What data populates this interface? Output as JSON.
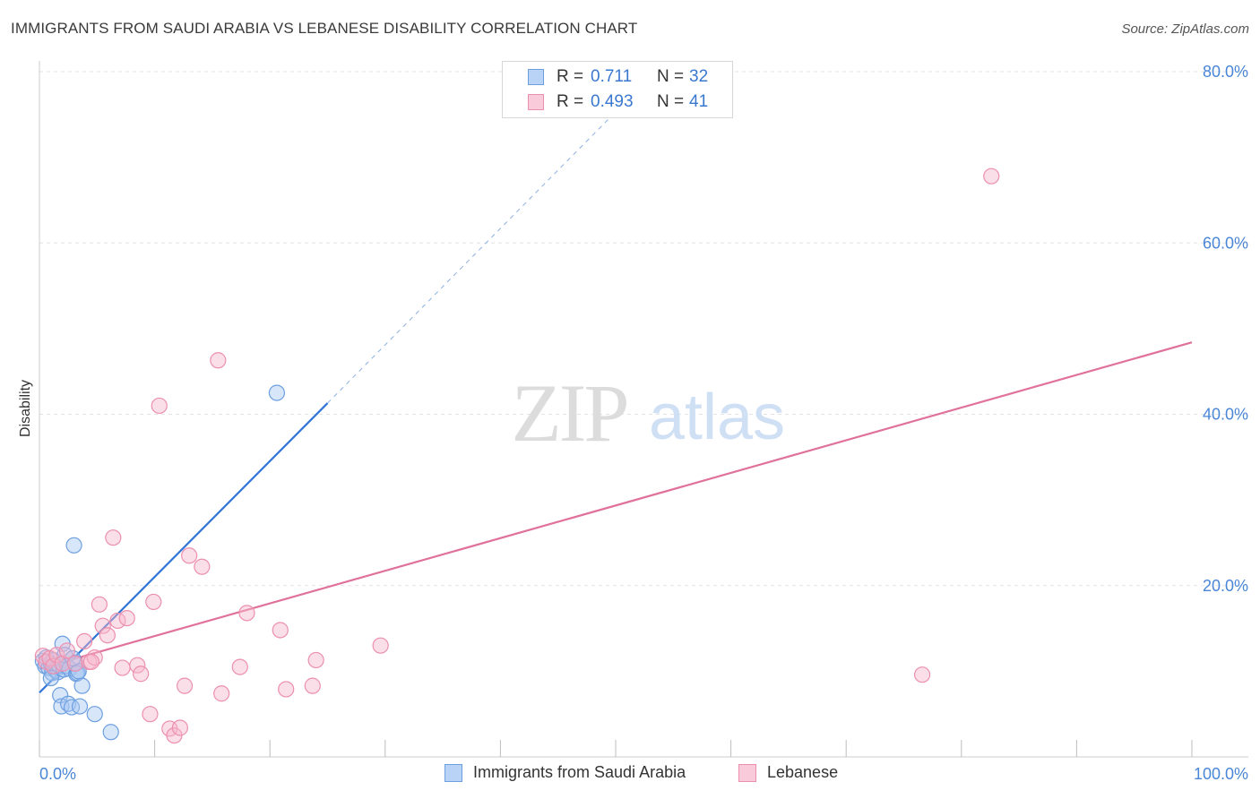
{
  "header": {
    "title": "IMMIGRANTS FROM SAUDI ARABIA VS LEBANESE DISABILITY CORRELATION CHART",
    "source": "Source: ZipAtlas.com"
  },
  "watermark": {
    "zip": "ZIP",
    "atlas": "atlas"
  },
  "legend": {
    "rows": [
      {
        "r_label": "R =",
        "r_value": "0.711",
        "n_label": "N =",
        "n_value": "32"
      },
      {
        "r_label": "R =",
        "r_value": "0.493",
        "n_label": "N =",
        "n_value": "41"
      }
    ]
  },
  "bottom_legend": {
    "series_a": "Immigrants from Saudi Arabia",
    "series_b": "Lebanese"
  },
  "colors": {
    "blue_fill": "#a9c8f2",
    "blue_stroke": "#6d9fe0",
    "blue_line": "#2f74d6",
    "pink_fill": "#f6b9cc",
    "pink_stroke": "#ec8fae",
    "pink_line": "#e0719a",
    "tick_text": "#4a86d6",
    "grid": "#e3e3e3"
  },
  "chart_data": {
    "type": "scatter",
    "title": "IMMIGRANTS FROM SAUDI ARABIA VS LEBANESE DISABILITY CORRELATION CHART",
    "xlabel": "",
    "ylabel": "Disability",
    "xlim": [
      0,
      100
    ],
    "ylim": [
      0,
      80
    ],
    "x_tick_labels": [
      "0.0%",
      "100.0%"
    ],
    "y_ticks": [
      20,
      40,
      60,
      80
    ],
    "y_tick_labels": [
      "20.0%",
      "40.0%",
      "60.0%",
      "80.0%"
    ],
    "series": [
      {
        "name": "Immigrants from Saudi Arabia",
        "color": "#6d9fe0",
        "r": 0.711,
        "n": 32,
        "points": [
          [
            0.3,
            11.2
          ],
          [
            0.5,
            10.6
          ],
          [
            0.6,
            11.6
          ],
          [
            0.8,
            10.4
          ],
          [
            1.0,
            10.9
          ],
          [
            1.1,
            9.8
          ],
          [
            1.2,
            11.3
          ],
          [
            1.4,
            10.1
          ],
          [
            1.5,
            10.5
          ],
          [
            1.6,
            9.9
          ],
          [
            1.7,
            10.7
          ],
          [
            1.8,
            7.2
          ],
          [
            1.9,
            5.9
          ],
          [
            2.0,
            13.2
          ],
          [
            2.1,
            10.2
          ],
          [
            2.2,
            11.9
          ],
          [
            2.4,
            10.6
          ],
          [
            2.5,
            6.2
          ],
          [
            2.6,
            10.3
          ],
          [
            2.8,
            5.8
          ],
          [
            3.0,
            24.7
          ],
          [
            3.1,
            11.0
          ],
          [
            3.2,
            9.7
          ],
          [
            3.3,
            9.8
          ],
          [
            3.4,
            10.0
          ],
          [
            3.5,
            5.9
          ],
          [
            3.7,
            8.3
          ],
          [
            1.0,
            9.2
          ],
          [
            4.8,
            5.0
          ],
          [
            6.2,
            2.9
          ],
          [
            20.6,
            42.5
          ],
          [
            2.9,
            11.5
          ]
        ],
        "trend": {
          "x0": 0,
          "y0": 7.5,
          "x1": 25,
          "y1": 41.3,
          "dash_to": [
            50,
            75.3
          ]
        }
      },
      {
        "name": "Lebanese",
        "color": "#ec8fae",
        "r": 0.493,
        "n": 41,
        "points": [
          [
            0.3,
            11.8
          ],
          [
            0.6,
            11.1
          ],
          [
            0.9,
            11.5
          ],
          [
            1.2,
            10.6
          ],
          [
            1.5,
            11.9
          ],
          [
            2.0,
            10.9
          ],
          [
            2.4,
            12.4
          ],
          [
            3.1,
            10.9
          ],
          [
            3.9,
            13.5
          ],
          [
            4.3,
            11.1
          ],
          [
            4.8,
            11.6
          ],
          [
            5.2,
            17.8
          ],
          [
            5.5,
            15.3
          ],
          [
            5.9,
            14.2
          ],
          [
            6.4,
            25.6
          ],
          [
            6.8,
            15.9
          ],
          [
            7.2,
            10.4
          ],
          [
            7.6,
            16.2
          ],
          [
            8.5,
            10.7
          ],
          [
            8.8,
            9.7
          ],
          [
            9.6,
            5.0
          ],
          [
            9.9,
            18.1
          ],
          [
            10.4,
            41.0
          ],
          [
            11.3,
            3.3
          ],
          [
            11.7,
            2.5
          ],
          [
            12.2,
            3.4
          ],
          [
            12.6,
            8.3
          ],
          [
            13.0,
            23.5
          ],
          [
            14.1,
            22.2
          ],
          [
            15.5,
            46.3
          ],
          [
            15.8,
            7.4
          ],
          [
            17.4,
            10.5
          ],
          [
            18.0,
            16.8
          ],
          [
            20.9,
            14.8
          ],
          [
            21.4,
            7.9
          ],
          [
            23.7,
            8.3
          ],
          [
            24.0,
            11.3
          ],
          [
            29.6,
            13.0
          ],
          [
            76.6,
            9.6
          ],
          [
            82.6,
            67.8
          ],
          [
            4.5,
            11.1
          ]
        ],
        "trend": {
          "x0": 0,
          "y0": 10.3,
          "x1": 100,
          "y1": 48.4
        }
      }
    ]
  }
}
